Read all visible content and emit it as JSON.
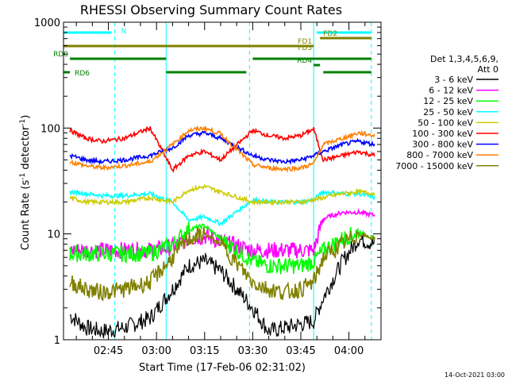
{
  "chart_data": {
    "type": "line",
    "title": "RHESSI Observing Summary Count Rates",
    "xlabel": "Start Time (17-Feb-06 02:31:02)",
    "ylabel_main": "Count Rate (s",
    "ylabel_exp1": "-1",
    "ylabel_mid": " detector",
    "ylabel_exp2": "-1",
    "ylabel_end": ")",
    "x_ticks": [
      "02:45",
      "03:00",
      "03:15",
      "03:30",
      "03:45",
      "04:00"
    ],
    "x_tick_minutes": [
      165,
      180,
      195,
      210,
      225,
      240
    ],
    "x_range_minutes": [
      151,
      250
    ],
    "y_scale": "log",
    "ylim": [
      1,
      1000
    ],
    "y_ticks": [
      "1",
      "10",
      "100",
      "1000"
    ],
    "y_tick_values": [
      1,
      10,
      100,
      1000
    ],
    "legend_title_1": "Det 1,3,4,5,6,9,",
    "legend_title_2": "Att 0",
    "legend_position": "right",
    "series": [
      {
        "name": "3 - 6 keV",
        "color": "#000000",
        "values": [
          1.7,
          1.3,
          1.2,
          1.3,
          1.6,
          3.0,
          5.0,
          5.5,
          4.5,
          2.0,
          1.2,
          1.3,
          1.4,
          1.5,
          2.5,
          5.5,
          9.0,
          8.0
        ]
      },
      {
        "name": "6 - 12 keV",
        "color": "#ff00ff",
        "values": [
          7.0,
          7.0,
          7.0,
          7.0,
          7.0,
          7.5,
          9.0,
          9.5,
          8.5,
          7.0,
          7.0,
          7.0,
          7.0,
          7.0,
          14.0,
          16.0,
          16.0,
          15.0
        ]
      },
      {
        "name": "12 - 25 keV",
        "color": "#00ff00",
        "values": [
          6.5,
          6.5,
          6.5,
          6.5,
          6.5,
          8.0,
          11.0,
          12.0,
          9.0,
          5.5,
          5.0,
          5.0,
          5.0,
          5.5,
          7.0,
          9.0,
          10.5,
          9.0
        ]
      },
      {
        "name": "25 - 50 keV",
        "color": "#00ffff",
        "values": [
          25.0,
          24.0,
          23.0,
          23.0,
          24.0,
          20.0,
          13.5,
          14.5,
          12.5,
          21.0,
          20.0,
          20.0,
          20.0,
          21.0,
          25.0,
          24.0,
          24.0,
          22.0
        ]
      },
      {
        "name": "50 - 100 keV",
        "color": "#cccc00",
        "values": [
          22.0,
          20.0,
          20.0,
          20.0,
          22.0,
          20.0,
          26.0,
          28.0,
          25.0,
          20.0,
          20.0,
          20.0,
          20.0,
          21.0,
          22.0,
          24.0,
          25.0,
          24.0
        ]
      },
      {
        "name": "100 - 300 keV",
        "color": "#ff0000",
        "values": [
          95.0,
          80.0,
          75.0,
          80.0,
          100.0,
          40.0,
          55.0,
          60.0,
          50.0,
          95.0,
          85.0,
          80.0,
          85.0,
          98.0,
          50.0,
          55.0,
          60.0,
          55.0
        ]
      },
      {
        "name": "300 - 800 keV",
        "color": "#0000ff",
        "values": [
          55.0,
          50.0,
          48.0,
          50.0,
          55.0,
          65.0,
          85.0,
          90.0,
          80.0,
          55.0,
          50.0,
          48.0,
          50.0,
          55.0,
          60.0,
          70.0,
          75.0,
          70.0
        ]
      },
      {
        "name": "800 - 7000 keV",
        "color": "#ff8000",
        "values": [
          48.0,
          44.0,
          42.0,
          44.0,
          48.0,
          70.0,
          95.0,
          100.0,
          88.0,
          45.0,
          42.0,
          41.0,
          42.0,
          46.0,
          70.0,
          80.0,
          90.0,
          85.0
        ]
      },
      {
        "name": "7000 - 15000 keV",
        "color": "#808000",
        "values": [
          3.5,
          3.0,
          2.8,
          3.0,
          3.5,
          6.0,
          9.0,
          10.0,
          8.0,
          3.5,
          3.0,
          2.8,
          3.0,
          3.5,
          6.0,
          8.0,
          10.0,
          9.0
        ]
      }
    ],
    "series_minutes": [
      153,
      158,
      163,
      170,
      178,
      185,
      190,
      195,
      200,
      210,
      215,
      220,
      225,
      229,
      232,
      238,
      243,
      248
    ],
    "state_bars": [
      {
        "label": "N",
        "color": "#00ffff",
        "ranges": [
          [
            151,
            166
          ],
          [
            230,
            247
          ]
        ],
        "level": "top"
      },
      {
        "label": "FD1",
        "color": "#808000",
        "ranges": [
          [
            151,
            229
          ]
        ],
        "level": "fd1"
      },
      {
        "label": "FD2",
        "color": "#808000",
        "ranges": [
          [
            231,
            247
          ]
        ],
        "level": "fd2"
      },
      {
        "label": "FD3",
        "color": "#808000",
        "ranges": [],
        "level": "fd3"
      },
      {
        "label": "RD0",
        "color": "#008000",
        "ranges": [
          [
            153,
            183
          ],
          [
            210,
            247
          ]
        ],
        "level": "rd0"
      },
      {
        "label": "RD4",
        "color": "#008000",
        "ranges": [
          [
            229,
            231
          ]
        ],
        "level": "rd4"
      },
      {
        "label": "RD6",
        "color": "#008000",
        "ranges": [
          [
            151,
            153
          ],
          [
            183,
            208
          ],
          [
            232,
            247
          ]
        ],
        "level": "rd6"
      }
    ],
    "saa_boundaries_minutes": [
      151,
      167,
      183,
      209,
      229,
      247
    ],
    "footer_date": "14-Oct-2021 03:00",
    "grid": false
  }
}
